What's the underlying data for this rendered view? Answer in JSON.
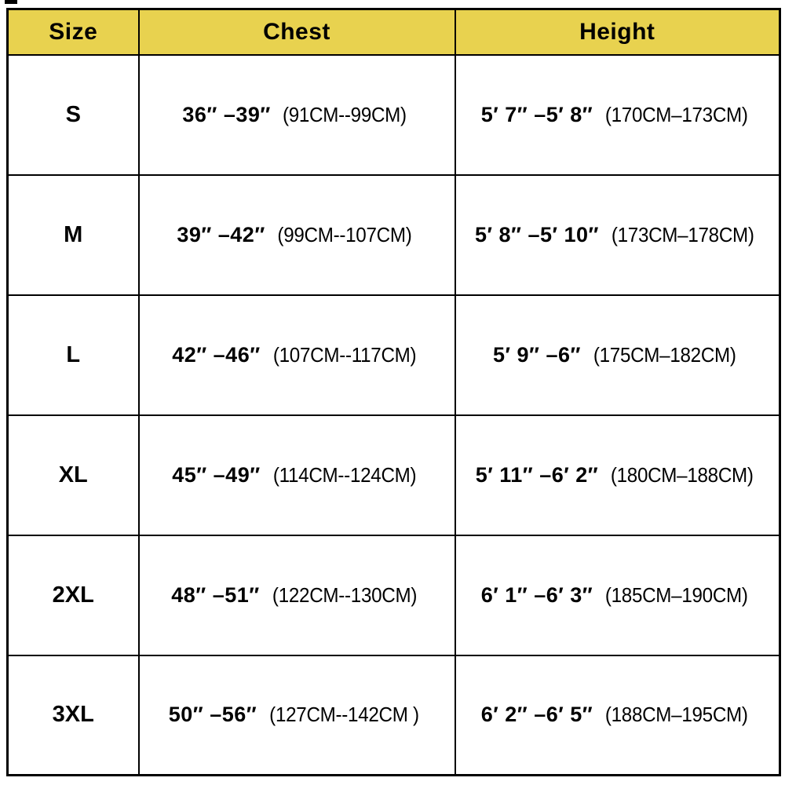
{
  "colors": {
    "header_bg": "#E8D24F",
    "border": "#000000",
    "text": "#000000",
    "row_bg": "#FFFFFF"
  },
  "table": {
    "headers": {
      "size": "Size",
      "chest": "Chest",
      "height": "Height"
    },
    "rows": [
      {
        "size": "S",
        "chest_range": "36″ –39″",
        "chest_cm": "(91CM--99CM)",
        "height_range": "5′ 7″ –5′ 8″",
        "height_cm": "(170CM–173CM)"
      },
      {
        "size": "M",
        "chest_range": "39″ –42″",
        "chest_cm": "(99CM--107CM)",
        "height_range": "5′ 8″ –5′ 10″",
        "height_cm": "(173CM–178CM)"
      },
      {
        "size": "L",
        "chest_range": "42″ –46″",
        "chest_cm": "(107CM--117CM)",
        "height_range": "5′ 9″ –6″",
        "height_cm": "(175CM–182CM)"
      },
      {
        "size": "XL",
        "chest_range": "45″ –49″",
        "chest_cm": "(114CM--124CM)",
        "height_range": "5′ 11″ –6′ 2″",
        "height_cm": "(180CM–188CM)"
      },
      {
        "size": "2XL",
        "chest_range": "48″ –51″",
        "chest_cm": "(122CM--130CM)",
        "height_range": "6′ 1″ –6′ 3″",
        "height_cm": "(185CM–190CM)"
      },
      {
        "size": "3XL",
        "chest_range": "50″ –56″",
        "chest_cm": "(127CM--142CM )",
        "height_range": "6′ 2″ –6′ 5″",
        "height_cm": "(188CM–195CM)"
      }
    ]
  },
  "chart_data": {
    "type": "table",
    "title": "Apparel size chart",
    "columns": [
      "Size",
      "Chest",
      "Height"
    ],
    "rows": [
      [
        "S",
        "36″ –39″ (91CM--99CM)",
        "5′ 7″ –5′ 8″ (170CM–173CM)"
      ],
      [
        "M",
        "39″ –42″ (99CM--107CM)",
        "5′ 8″ –5′ 10″ (173CM–178CM)"
      ],
      [
        "L",
        "42″ –46″ (107CM--117CM)",
        "5′ 9″ –6″ (175CM–182CM)"
      ],
      [
        "XL",
        "45″ –49″ (114CM--124CM)",
        "5′ 11″ –6′ 2″ (180CM–188CM)"
      ],
      [
        "2XL",
        "48″ –51″ (122CM--130CM)",
        "6′ 1″ –6′ 3″ (185CM–190CM)"
      ],
      [
        "3XL",
        "50″ –56″ (127CM--142CM )",
        "6′ 2″ –6′ 5″ (188CM–195CM)"
      ]
    ]
  }
}
